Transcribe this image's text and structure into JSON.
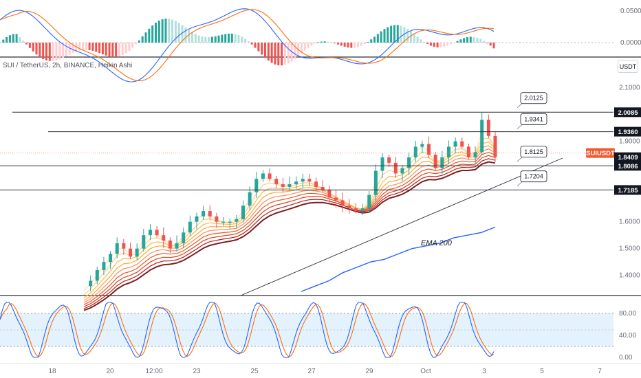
{
  "symbol_line": "SUI / TetherUS, 2h, BINANCE, Heikin Ashi",
  "currency_button": "USDT",
  "colors": {
    "up": "#26a69a",
    "down": "#ef5350",
    "macd_line": "#2962ff",
    "signal_line": "#ff6d00",
    "ema200": "#2962ff",
    "stoch_band": "#e3f2fd",
    "ribbon": [
      "#ffe0b2",
      "#ffcc80",
      "#ffb74d",
      "#ffa726",
      "#ff8a65",
      "#f4511e",
      "#d84315",
      "#b71c1c",
      "#7f1d1d"
    ]
  },
  "macd_axis_labels": [
    "0.0500",
    "0.0000"
  ],
  "price_axis_labels": [
    "2.1000",
    "1.9000",
    "1.6000",
    "1.5000",
    "1.4000"
  ],
  "stoch_axis_labels": [
    "80.00",
    "40.00",
    "0.00"
  ],
  "price_tags": [
    {
      "label": "2.0085",
      "price": 2.0085,
      "style": "dark"
    },
    {
      "label": "1.9360",
      "price": 1.936,
      "style": "dark"
    },
    {
      "label": "SUIUSDT",
      "price": 1.8563,
      "style": "symbol"
    },
    {
      "label": "1.8409",
      "price": 1.8409,
      "style": "dark"
    },
    {
      "label": "1.8086",
      "price": 1.8086,
      "style": "dark"
    },
    {
      "label": "1.7185",
      "price": 1.7185,
      "style": "dark"
    }
  ],
  "level_callouts": [
    {
      "label": "2.0125",
      "price": 2.0125
    },
    {
      "label": "1.9341",
      "price": 1.9341
    },
    {
      "label": "1.8125",
      "price": 1.8125
    },
    {
      "label": "1.7204",
      "price": 1.7204
    }
  ],
  "annotation": "EMA 200",
  "x_axis_labels": [
    "18",
    "20",
    "12:00",
    "23",
    "25",
    "27",
    "29",
    "Oct",
    "3",
    "5",
    "7"
  ],
  "chart_data": {
    "type": "candlestick",
    "ticker": "SUIUSDT",
    "timeframe": "2h",
    "price_range": [
      1.33,
      2.14
    ],
    "horizontal_levels": [
      2.0085,
      1.936,
      1.8086,
      1.7185
    ],
    "current_price": 1.8409,
    "price_series_close": [
      1.36,
      1.38,
      1.42,
      1.45,
      1.48,
      1.52,
      1.5,
      1.47,
      1.5,
      1.55,
      1.57,
      1.55,
      1.53,
      1.5,
      1.52,
      1.56,
      1.6,
      1.62,
      1.64,
      1.62,
      1.6,
      1.6,
      1.6,
      1.61,
      1.66,
      1.71,
      1.76,
      1.78,
      1.76,
      1.74,
      1.73,
      1.74,
      1.75,
      1.76,
      1.75,
      1.73,
      1.72,
      1.69,
      1.68,
      1.66,
      1.65,
      1.64,
      1.65,
      1.7,
      1.79,
      1.84,
      1.82,
      1.78,
      1.8,
      1.84,
      1.88,
      1.89,
      1.85,
      1.8,
      1.84,
      1.88,
      1.9,
      1.88,
      1.84,
      1.86,
      1.98,
      1.92,
      1.8409
    ],
    "ema200": [
      1.34,
      1.36,
      1.38,
      1.41,
      1.43,
      1.45,
      1.46,
      1.48,
      1.5,
      1.51,
      1.52,
      1.54,
      1.55,
      1.56,
      1.58
    ],
    "macd_range": [
      -0.03,
      0.065
    ],
    "stoch_range": [
      0,
      100
    ],
    "stoch_band": [
      20,
      80
    ],
    "annotations": [
      "EMA 200"
    ]
  }
}
